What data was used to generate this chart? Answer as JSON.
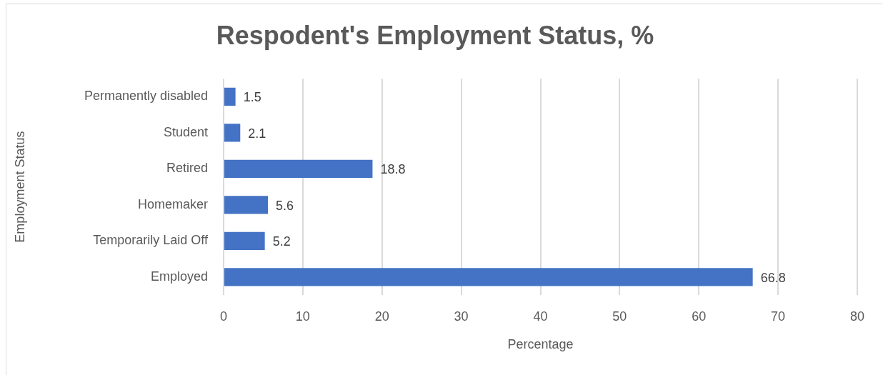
{
  "chart_data": {
    "type": "bar",
    "orientation": "horizontal",
    "title": "Respodent's Employment Status, %",
    "xlabel": "Percentage",
    "ylabel": "Employment Status",
    "categories": [
      "Permanently disabled",
      "Student",
      "Retired",
      "Homemaker",
      "Temporarily Laid Off",
      "Employed"
    ],
    "values": [
      1.5,
      2.1,
      18.8,
      5.6,
      5.2,
      66.8
    ],
    "color": "#4472c4",
    "xlim": [
      0,
      80
    ],
    "xticks": [
      0,
      10,
      20,
      30,
      40,
      50,
      60,
      70,
      80
    ],
    "grid": "x",
    "legend": false,
    "data_labels": true
  }
}
